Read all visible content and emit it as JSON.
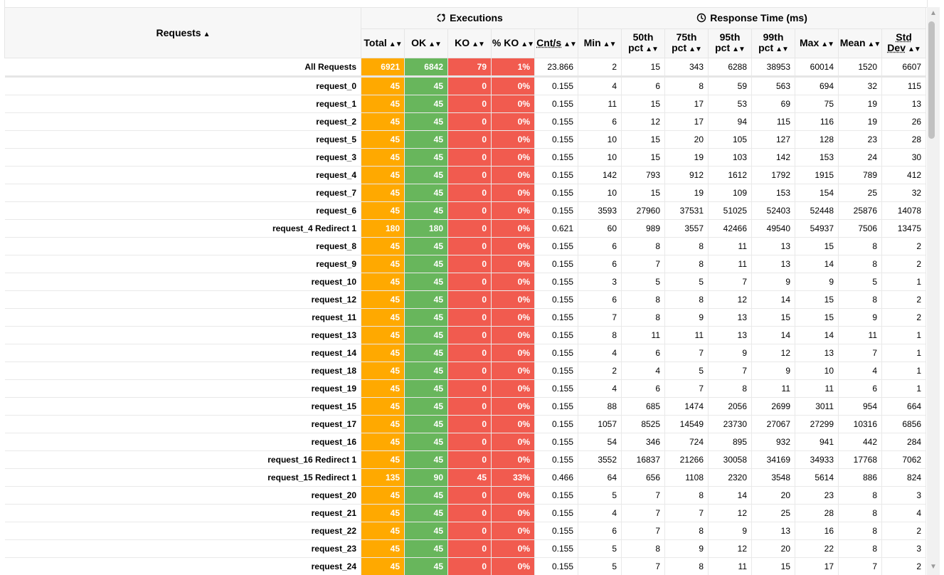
{
  "header": {
    "requests_label": "Requests",
    "executions_label": "Executions",
    "response_time_label": "Response Time (ms)",
    "columns": {
      "total": "Total",
      "ok": "OK",
      "ko": "KO",
      "pko": "% KO",
      "cnts": "Cnt/s",
      "min": "Min",
      "p50a": "50th",
      "p50b": "pct",
      "p75a": "75th",
      "p75b": "pct",
      "p95a": "95th",
      "p95b": "pct",
      "p99a": "99th",
      "p99b": "pct",
      "max": "Max",
      "mean": "Mean",
      "stda": "Std",
      "stdb": "Dev"
    }
  },
  "icons": {
    "executions": "refresh-icon",
    "response_time": "clock-icon",
    "sort_both": "sort-icon",
    "sort_asc": "sort-asc-icon"
  },
  "colors": {
    "total": "#ffa900",
    "ok": "#68b65c",
    "ko": "#f15b4f"
  },
  "rows": [
    {
      "name": "All Requests",
      "total": "6921",
      "ok": "6842",
      "ko": "79",
      "pko": "1%",
      "cnts": "23.866",
      "min": "2",
      "p50": "15",
      "p75": "343",
      "p95": "6288",
      "p99": "38953",
      "max": "60014",
      "mean": "1520",
      "std": "6607"
    },
    {
      "name": "request_0",
      "total": "45",
      "ok": "45",
      "ko": "0",
      "pko": "0%",
      "cnts": "0.155",
      "min": "4",
      "p50": "6",
      "p75": "8",
      "p95": "59",
      "p99": "563",
      "max": "694",
      "mean": "32",
      "std": "115"
    },
    {
      "name": "request_1",
      "total": "45",
      "ok": "45",
      "ko": "0",
      "pko": "0%",
      "cnts": "0.155",
      "min": "11",
      "p50": "15",
      "p75": "17",
      "p95": "53",
      "p99": "69",
      "max": "75",
      "mean": "19",
      "std": "13"
    },
    {
      "name": "request_2",
      "total": "45",
      "ok": "45",
      "ko": "0",
      "pko": "0%",
      "cnts": "0.155",
      "min": "6",
      "p50": "12",
      "p75": "17",
      "p95": "94",
      "p99": "115",
      "max": "116",
      "mean": "19",
      "std": "26"
    },
    {
      "name": "request_5",
      "total": "45",
      "ok": "45",
      "ko": "0",
      "pko": "0%",
      "cnts": "0.155",
      "min": "10",
      "p50": "15",
      "p75": "20",
      "p95": "105",
      "p99": "127",
      "max": "128",
      "mean": "23",
      "std": "28"
    },
    {
      "name": "request_3",
      "total": "45",
      "ok": "45",
      "ko": "0",
      "pko": "0%",
      "cnts": "0.155",
      "min": "10",
      "p50": "15",
      "p75": "19",
      "p95": "103",
      "p99": "142",
      "max": "153",
      "mean": "24",
      "std": "30"
    },
    {
      "name": "request_4",
      "total": "45",
      "ok": "45",
      "ko": "0",
      "pko": "0%",
      "cnts": "0.155",
      "min": "142",
      "p50": "793",
      "p75": "912",
      "p95": "1612",
      "p99": "1792",
      "max": "1915",
      "mean": "789",
      "std": "412"
    },
    {
      "name": "request_7",
      "total": "45",
      "ok": "45",
      "ko": "0",
      "pko": "0%",
      "cnts": "0.155",
      "min": "10",
      "p50": "15",
      "p75": "19",
      "p95": "109",
      "p99": "153",
      "max": "154",
      "mean": "25",
      "std": "32"
    },
    {
      "name": "request_6",
      "total": "45",
      "ok": "45",
      "ko": "0",
      "pko": "0%",
      "cnts": "0.155",
      "min": "3593",
      "p50": "27960",
      "p75": "37531",
      "p95": "51025",
      "p99": "52403",
      "max": "52448",
      "mean": "25876",
      "std": "14078"
    },
    {
      "name": "request_4 Redirect 1",
      "total": "180",
      "ok": "180",
      "ko": "0",
      "pko": "0%",
      "cnts": "0.621",
      "min": "60",
      "p50": "989",
      "p75": "3557",
      "p95": "42466",
      "p99": "49540",
      "max": "54937",
      "mean": "7506",
      "std": "13475"
    },
    {
      "name": "request_8",
      "total": "45",
      "ok": "45",
      "ko": "0",
      "pko": "0%",
      "cnts": "0.155",
      "min": "6",
      "p50": "8",
      "p75": "8",
      "p95": "11",
      "p99": "13",
      "max": "15",
      "mean": "8",
      "std": "2"
    },
    {
      "name": "request_9",
      "total": "45",
      "ok": "45",
      "ko": "0",
      "pko": "0%",
      "cnts": "0.155",
      "min": "6",
      "p50": "7",
      "p75": "8",
      "p95": "11",
      "p99": "13",
      "max": "14",
      "mean": "8",
      "std": "2"
    },
    {
      "name": "request_10",
      "total": "45",
      "ok": "45",
      "ko": "0",
      "pko": "0%",
      "cnts": "0.155",
      "min": "3",
      "p50": "5",
      "p75": "5",
      "p95": "7",
      "p99": "9",
      "max": "9",
      "mean": "5",
      "std": "1"
    },
    {
      "name": "request_12",
      "total": "45",
      "ok": "45",
      "ko": "0",
      "pko": "0%",
      "cnts": "0.155",
      "min": "6",
      "p50": "8",
      "p75": "8",
      "p95": "12",
      "p99": "14",
      "max": "15",
      "mean": "8",
      "std": "2"
    },
    {
      "name": "request_11",
      "total": "45",
      "ok": "45",
      "ko": "0",
      "pko": "0%",
      "cnts": "0.155",
      "min": "7",
      "p50": "8",
      "p75": "9",
      "p95": "13",
      "p99": "15",
      "max": "15",
      "mean": "9",
      "std": "2"
    },
    {
      "name": "request_13",
      "total": "45",
      "ok": "45",
      "ko": "0",
      "pko": "0%",
      "cnts": "0.155",
      "min": "8",
      "p50": "11",
      "p75": "11",
      "p95": "13",
      "p99": "14",
      "max": "14",
      "mean": "11",
      "std": "1"
    },
    {
      "name": "request_14",
      "total": "45",
      "ok": "45",
      "ko": "0",
      "pko": "0%",
      "cnts": "0.155",
      "min": "4",
      "p50": "6",
      "p75": "7",
      "p95": "9",
      "p99": "12",
      "max": "13",
      "mean": "7",
      "std": "1"
    },
    {
      "name": "request_18",
      "total": "45",
      "ok": "45",
      "ko": "0",
      "pko": "0%",
      "cnts": "0.155",
      "min": "2",
      "p50": "4",
      "p75": "5",
      "p95": "7",
      "p99": "9",
      "max": "10",
      "mean": "4",
      "std": "1"
    },
    {
      "name": "request_19",
      "total": "45",
      "ok": "45",
      "ko": "0",
      "pko": "0%",
      "cnts": "0.155",
      "min": "4",
      "p50": "6",
      "p75": "7",
      "p95": "8",
      "p99": "11",
      "max": "11",
      "mean": "6",
      "std": "1"
    },
    {
      "name": "request_15",
      "total": "45",
      "ok": "45",
      "ko": "0",
      "pko": "0%",
      "cnts": "0.155",
      "min": "88",
      "p50": "685",
      "p75": "1474",
      "p95": "2056",
      "p99": "2699",
      "max": "3011",
      "mean": "954",
      "std": "664"
    },
    {
      "name": "request_17",
      "total": "45",
      "ok": "45",
      "ko": "0",
      "pko": "0%",
      "cnts": "0.155",
      "min": "1057",
      "p50": "8525",
      "p75": "14549",
      "p95": "23730",
      "p99": "27067",
      "max": "27299",
      "mean": "10316",
      "std": "6856"
    },
    {
      "name": "request_16",
      "total": "45",
      "ok": "45",
      "ko": "0",
      "pko": "0%",
      "cnts": "0.155",
      "min": "54",
      "p50": "346",
      "p75": "724",
      "p95": "895",
      "p99": "932",
      "max": "941",
      "mean": "442",
      "std": "284"
    },
    {
      "name": "request_16 Redirect 1",
      "total": "45",
      "ok": "45",
      "ko": "0",
      "pko": "0%",
      "cnts": "0.155",
      "min": "3552",
      "p50": "16837",
      "p75": "21266",
      "p95": "30058",
      "p99": "34169",
      "max": "34933",
      "mean": "17768",
      "std": "7062"
    },
    {
      "name": "request_15 Redirect 1",
      "total": "135",
      "ok": "90",
      "ko": "45",
      "pko": "33%",
      "cnts": "0.466",
      "min": "64",
      "p50": "656",
      "p75": "1108",
      "p95": "2320",
      "p99": "3548",
      "max": "5614",
      "mean": "886",
      "std": "824"
    },
    {
      "name": "request_20",
      "total": "45",
      "ok": "45",
      "ko": "0",
      "pko": "0%",
      "cnts": "0.155",
      "min": "5",
      "p50": "7",
      "p75": "8",
      "p95": "14",
      "p99": "20",
      "max": "23",
      "mean": "8",
      "std": "3"
    },
    {
      "name": "request_21",
      "total": "45",
      "ok": "45",
      "ko": "0",
      "pko": "0%",
      "cnts": "0.155",
      "min": "4",
      "p50": "7",
      "p75": "7",
      "p95": "12",
      "p99": "25",
      "max": "28",
      "mean": "8",
      "std": "4"
    },
    {
      "name": "request_22",
      "total": "45",
      "ok": "45",
      "ko": "0",
      "pko": "0%",
      "cnts": "0.155",
      "min": "6",
      "p50": "7",
      "p75": "8",
      "p95": "9",
      "p99": "13",
      "max": "16",
      "mean": "8",
      "std": "2"
    },
    {
      "name": "request_23",
      "total": "45",
      "ok": "45",
      "ko": "0",
      "pko": "0%",
      "cnts": "0.155",
      "min": "5",
      "p50": "8",
      "p75": "9",
      "p95": "12",
      "p99": "20",
      "max": "22",
      "mean": "8",
      "std": "3"
    },
    {
      "name": "request_24",
      "total": "45",
      "ok": "45",
      "ko": "0",
      "pko": "0%",
      "cnts": "0.155",
      "min": "5",
      "p50": "7",
      "p75": "8",
      "p95": "11",
      "p99": "15",
      "max": "17",
      "mean": "7",
      "std": "2"
    }
  ]
}
